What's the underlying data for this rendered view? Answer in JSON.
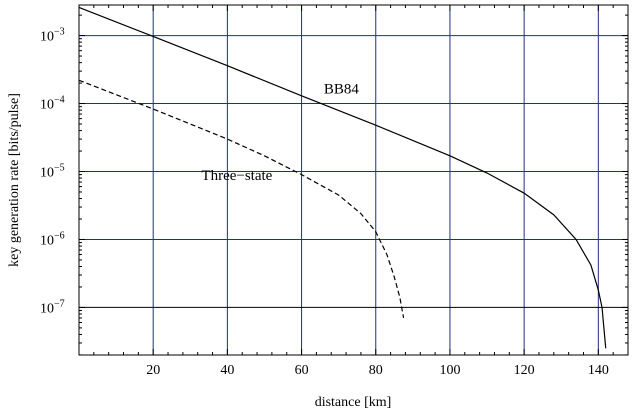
{
  "chart_data": {
    "type": "line",
    "xlabel": "distance [km]",
    "ylabel": "key generation rate  [bits/pulse]",
    "xlim": [
      0,
      148
    ],
    "ylim_log10": [
      -7.7,
      -2.55
    ],
    "log_y": true,
    "grid": true,
    "x_ticks": [
      {
        "value": 20,
        "label": "20"
      },
      {
        "value": 40,
        "label": "40"
      },
      {
        "value": 60,
        "label": "60"
      },
      {
        "value": 80,
        "label": "80"
      },
      {
        "value": 100,
        "label": "100"
      },
      {
        "value": 120,
        "label": "120"
      },
      {
        "value": 140,
        "label": "140"
      }
    ],
    "y_ticks": [
      {
        "exp": -3,
        "label_base": "10",
        "label_exp": "−3"
      },
      {
        "exp": -4,
        "label_base": "10",
        "label_exp": "−4"
      },
      {
        "exp": -5,
        "label_base": "10",
        "label_exp": "−5"
      },
      {
        "exp": -6,
        "label_base": "10",
        "label_exp": "−6"
      },
      {
        "exp": -7,
        "label_base": "10",
        "label_exp": "−7"
      }
    ],
    "reference_line_exp": -7,
    "series": [
      {
        "name": "BB84",
        "style": "solid",
        "color": "#000000",
        "label_at": {
          "x": 66,
          "y": 0.00014
        },
        "points": [
          {
            "x": 0,
            "y": 0.0026
          },
          {
            "x": 20,
            "y": 0.00097
          },
          {
            "x": 40,
            "y": 0.00036
          },
          {
            "x": 60,
            "y": 0.00013
          },
          {
            "x": 80,
            "y": 4.8e-05
          },
          {
            "x": 100,
            "y": 1.7e-05
          },
          {
            "x": 110,
            "y": 9.5e-06
          },
          {
            "x": 120,
            "y": 4.8e-06
          },
          {
            "x": 128,
            "y": 2.3e-06
          },
          {
            "x": 134,
            "y": 1e-06
          },
          {
            "x": 138,
            "y": 4.2e-07
          },
          {
            "x": 140,
            "y": 1.8e-07
          },
          {
            "x": 141,
            "y": 1e-07
          },
          {
            "x": 142,
            "y": 2.5e-08
          }
        ]
      },
      {
        "name": "Three−state",
        "style": "dashed",
        "color": "#000000",
        "label_at": {
          "x": 33,
          "y": 7.5e-06
        },
        "points": [
          {
            "x": 0,
            "y": 0.00022
          },
          {
            "x": 20,
            "y": 8.3e-05
          },
          {
            "x": 40,
            "y": 3e-05
          },
          {
            "x": 50,
            "y": 1.7e-05
          },
          {
            "x": 60,
            "y": 9e-06
          },
          {
            "x": 70,
            "y": 4.5e-06
          },
          {
            "x": 76,
            "y": 2.4e-06
          },
          {
            "x": 80,
            "y": 1.3e-06
          },
          {
            "x": 83,
            "y": 6e-07
          },
          {
            "x": 85,
            "y": 2.8e-07
          },
          {
            "x": 86.5,
            "y": 1.4e-07
          },
          {
            "x": 87.5,
            "y": 7e-08
          }
        ]
      }
    ]
  }
}
